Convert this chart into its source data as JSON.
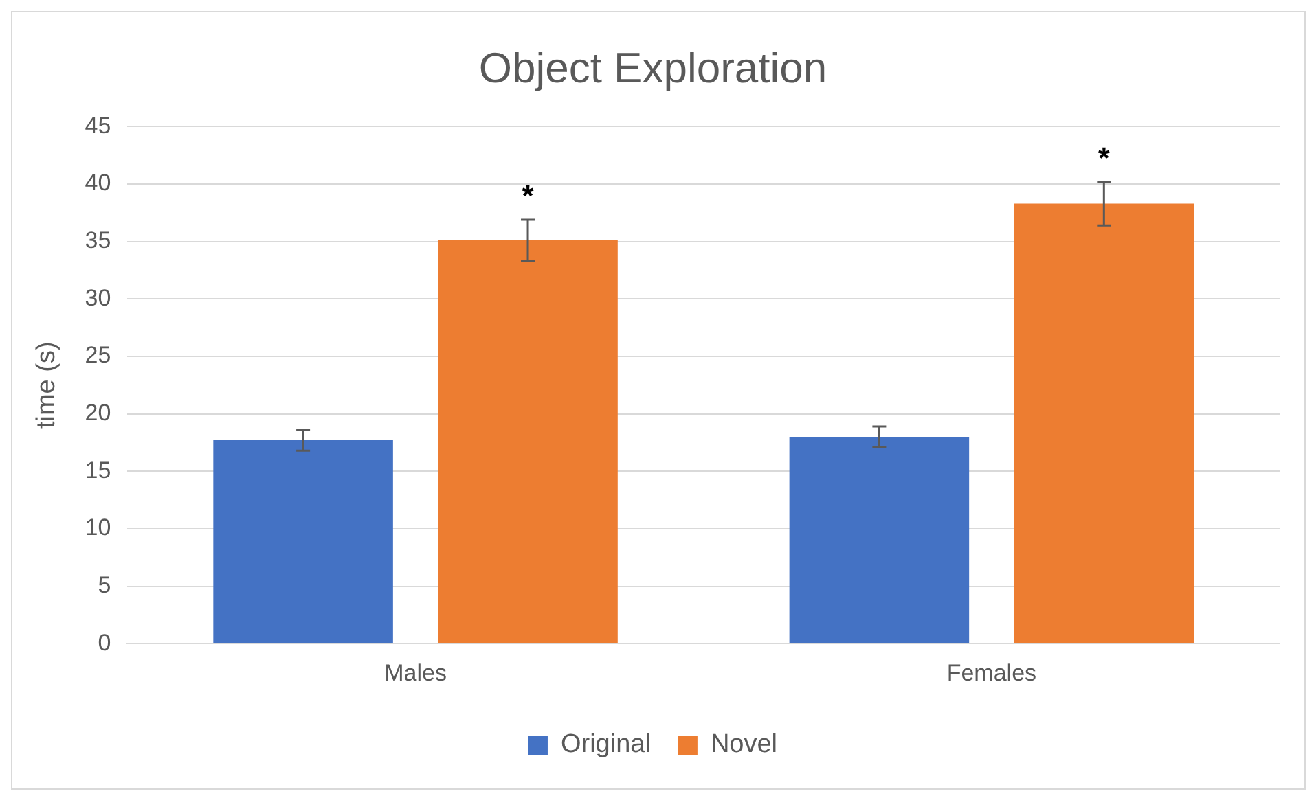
{
  "chart_data": {
    "type": "bar",
    "title": "Object Exploration",
    "ylabel": "time (s)",
    "categories": [
      "Males",
      "Females"
    ],
    "series": [
      {
        "name": "Original",
        "color": "#4472c4",
        "values": [
          17.7,
          18.0
        ],
        "errors": [
          0.9,
          0.9
        ]
      },
      {
        "name": "Novel",
        "color": "#ed7d31",
        "values": [
          35.1,
          38.3
        ],
        "errors": [
          1.8,
          1.9
        ]
      }
    ],
    "ylim": [
      0,
      45
    ],
    "yticks": [
      0,
      5,
      10,
      15,
      20,
      25,
      30,
      35,
      40,
      45
    ],
    "grid": "y",
    "legend": "bottom",
    "annotations": [
      "*",
      "*"
    ]
  }
}
